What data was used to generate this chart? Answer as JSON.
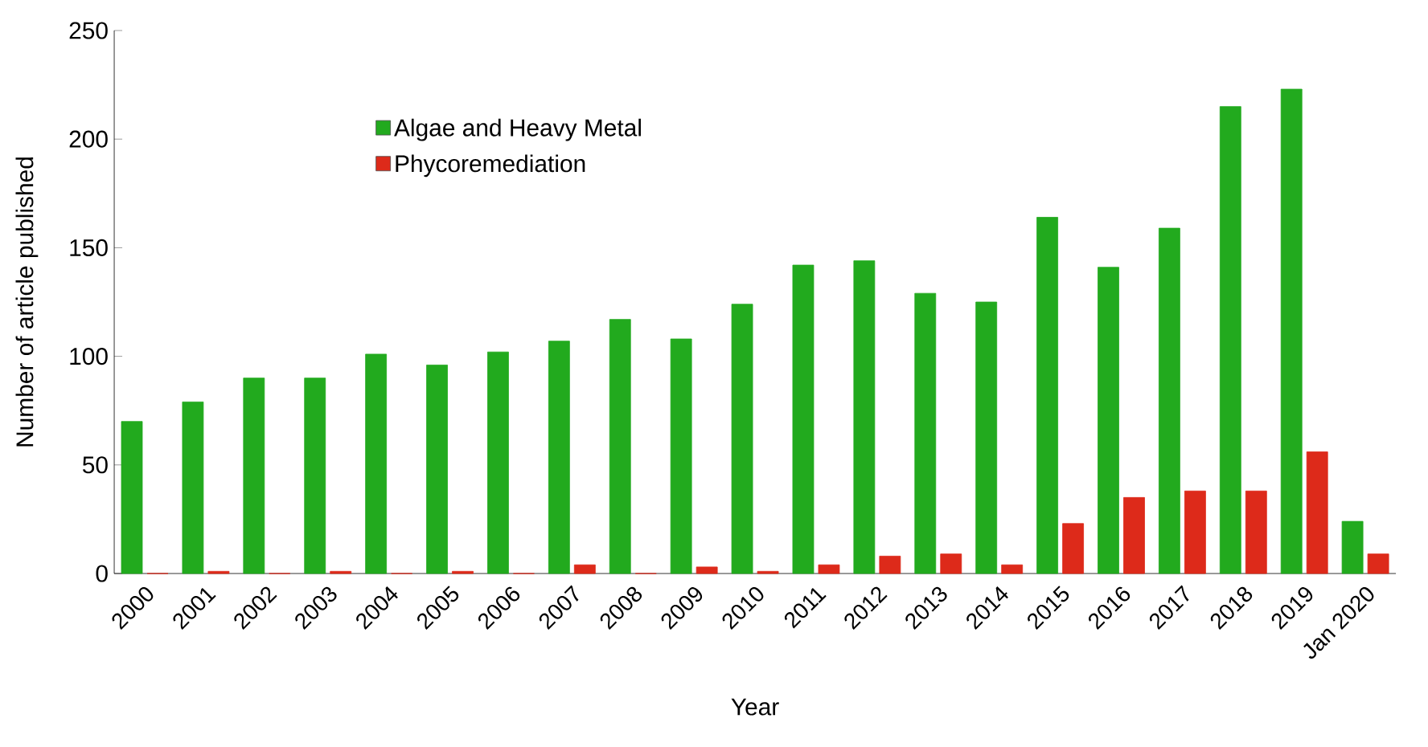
{
  "chart_data": {
    "type": "bar",
    "xlabel": "Year",
    "ylabel": "Number of article published",
    "categories": [
      "2000",
      "2001",
      "2002",
      "2003",
      "2004",
      "2005",
      "2006",
      "2007",
      "2008",
      "2009",
      "2010",
      "2011",
      "2012",
      "2013",
      "2014",
      "2015",
      "2016",
      "2017",
      "2018",
      "2019",
      "Jan 2020"
    ],
    "series": [
      {
        "name": "Algae and Heavy Metal",
        "color": "#22aa1e",
        "values": [
          70,
          79,
          90,
          90,
          101,
          96,
          102,
          107,
          117,
          108,
          124,
          142,
          144,
          129,
          125,
          164,
          141,
          159,
          215,
          223,
          24
        ]
      },
      {
        "name": "Phycoremediation",
        "color": "#dd2a1a",
        "values": [
          0,
          1,
          0,
          1,
          0,
          1,
          0,
          4,
          0,
          3,
          1,
          4,
          8,
          9,
          4,
          23,
          35,
          38,
          38,
          56,
          9
        ]
      }
    ],
    "ylim": [
      0,
      250
    ],
    "yticks": [
      0,
      50,
      100,
      150,
      200,
      250
    ],
    "grid": false,
    "legend": "top left"
  }
}
